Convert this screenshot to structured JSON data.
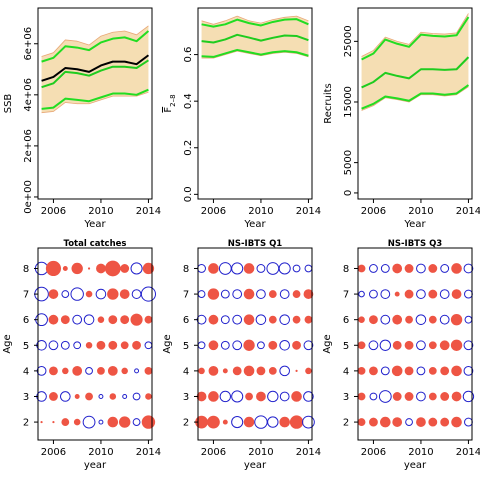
{
  "colors": {
    "band": "#f5deb3",
    "bandEdge": "#e8a878",
    "ci": "#22dd22",
    "ssbMain": "#000000",
    "estimate": "#1fcc1f",
    "positive": "#ee5544",
    "negative": "#2222cc"
  },
  "chart_data": [
    {
      "type": "line",
      "ylabel": "SSB",
      "xlabel": "Year",
      "xlim": [
        2004.7,
        2014.3
      ],
      "ylim": [
        -80000,
        7400000
      ],
      "yticks": [
        0,
        2000000,
        4000000,
        6000000
      ],
      "ytick_labels": [
        "0e+00",
        "2e+06",
        "4e+06",
        "6e+06"
      ],
      "x": [
        2005,
        2006,
        2007,
        2008,
        2009,
        2010,
        2011,
        2012,
        2013,
        2014
      ],
      "series": [
        {
          "role": "band_upper",
          "values": [
            5500000,
            5650000,
            6150000,
            6100000,
            5950000,
            6300000,
            6450000,
            6500000,
            6350000,
            6700000
          ]
        },
        {
          "role": "band_lower",
          "values": [
            3300000,
            3350000,
            3700000,
            3650000,
            3650000,
            3800000,
            3950000,
            3950000,
            3950000,
            4100000
          ]
        },
        {
          "role": "ci_upper",
          "values": [
            5300000,
            5450000,
            5900000,
            5850000,
            5750000,
            6050000,
            6200000,
            6250000,
            6100000,
            6500000
          ]
        },
        {
          "role": "ci_lower",
          "values": [
            3450000,
            3500000,
            3850000,
            3800000,
            3750000,
            3900000,
            4050000,
            4050000,
            4000000,
            4200000
          ]
        },
        {
          "role": "estimate",
          "values": [
            4300000,
            4450000,
            4900000,
            4850000,
            4750000,
            4950000,
            5100000,
            5100000,
            5050000,
            5350000
          ]
        },
        {
          "role": "ssb",
          "values": [
            4550000,
            4700000,
            5050000,
            5000000,
            4900000,
            5150000,
            5300000,
            5300000,
            5200000,
            5550000
          ]
        }
      ]
    },
    {
      "type": "line",
      "ylabel": "F",
      "ylabel_sub": "2–8",
      "xlabel": "Year",
      "xlim": [
        2004.7,
        2014.3
      ],
      "ylim": [
        -0.02,
        0.8
      ],
      "yticks": [
        0.0,
        0.2,
        0.4,
        0.6
      ],
      "ytick_labels": [
        "0.0",
        "0.2",
        "0.4",
        "0.6"
      ],
      "x": [
        2005,
        2006,
        2007,
        2008,
        2009,
        2010,
        2011,
        2012,
        2013,
        2014
      ],
      "series": [
        {
          "role": "band_upper",
          "values": [
            0.745,
            0.73,
            0.745,
            0.765,
            0.745,
            0.735,
            0.75,
            0.76,
            0.765,
            0.745
          ]
        },
        {
          "role": "band_lower",
          "values": [
            0.585,
            0.585,
            0.6,
            0.615,
            0.605,
            0.595,
            0.605,
            0.61,
            0.605,
            0.59
          ]
        },
        {
          "role": "ci_upper",
          "values": [
            0.73,
            0.72,
            0.73,
            0.75,
            0.735,
            0.725,
            0.74,
            0.75,
            0.752,
            0.73
          ]
        },
        {
          "role": "ci_lower",
          "values": [
            0.593,
            0.59,
            0.605,
            0.62,
            0.61,
            0.6,
            0.61,
            0.615,
            0.61,
            0.595
          ]
        },
        {
          "role": "estimate",
          "values": [
            0.658,
            0.652,
            0.665,
            0.685,
            0.673,
            0.66,
            0.672,
            0.682,
            0.68,
            0.662
          ]
        }
      ]
    },
    {
      "type": "line",
      "ylabel": "Recruits",
      "xlabel": "Year",
      "xlim": [
        2004.7,
        2014.3
      ],
      "ylim": [
        -1000,
        30500
      ],
      "yticks": [
        0,
        5000,
        15000,
        25000
      ],
      "ytick_labels": [
        "0",
        "5000",
        "15000",
        "25000"
      ],
      "x": [
        2005,
        2006,
        2007,
        2008,
        2009,
        2010,
        2011,
        2012,
        2013,
        2014
      ],
      "series": [
        {
          "role": "band_upper",
          "values": [
            22500,
            23500,
            25700,
            25000,
            24500,
            26500,
            26300,
            26200,
            26400,
            29600
          ]
        },
        {
          "role": "band_lower",
          "values": [
            13600,
            14400,
            15700,
            15400,
            15000,
            16200,
            16200,
            16000,
            16200,
            17500
          ]
        },
        {
          "role": "ci_upper",
          "values": [
            22000,
            23000,
            25300,
            24600,
            24100,
            26100,
            25900,
            25800,
            26000,
            29000
          ]
        },
        {
          "role": "ci_lower",
          "values": [
            13900,
            14700,
            15900,
            15600,
            15200,
            16400,
            16400,
            16200,
            16400,
            17800
          ]
        },
        {
          "role": "estimate",
          "values": [
            17400,
            18300,
            19800,
            19300,
            18900,
            20400,
            20400,
            20300,
            20400,
            22400
          ]
        }
      ]
    },
    {
      "type": "scatter",
      "title": "Total catches",
      "xlabel": "year",
      "ylabel": "Age",
      "xlim": [
        2004.7,
        2014.3
      ],
      "ylim": [
        1.3,
        8.8
      ],
      "ages": [
        2,
        3,
        4,
        5,
        6,
        7,
        8
      ],
      "years": [
        2005,
        2006,
        2007,
        2008,
        2009,
        2010,
        2011,
        2012,
        2013,
        2014
      ],
      "residuals": [
        [
          0.0,
          0.0,
          0.3,
          0.2,
          -0.9,
          -0.1,
          0.6,
          0.7,
          -0.3,
          1.0
        ],
        [
          -0.6,
          0.4,
          -0.6,
          0.1,
          0.3,
          -0.1,
          0.2,
          -0.1,
          -0.3,
          0.2
        ],
        [
          -0.5,
          0.4,
          0.2,
          0.5,
          -0.3,
          0.3,
          0.5,
          0.2,
          -0.1,
          0.3
        ],
        [
          -0.6,
          -0.5,
          -0.4,
          -0.3,
          0.2,
          0.4,
          0.4,
          0.3,
          0.4,
          -0.3
        ],
        [
          -0.9,
          0.5,
          0.4,
          -0.5,
          -0.6,
          0.2,
          0.4,
          0.4,
          0.8,
          0.3
        ],
        [
          -1.2,
          0.5,
          -0.3,
          -1.0,
          0.2,
          -0.6,
          0.7,
          0.5,
          -0.5,
          -1.3
        ],
        [
          -1.0,
          1.3,
          0.1,
          0.7,
          0.0,
          0.5,
          1.4,
          0.4,
          -0.8,
          0.7
        ]
      ]
    },
    {
      "type": "scatter",
      "title": "NS-IBTS Q1",
      "xlabel": "year",
      "ylabel": "Age",
      "xlim": [
        2004.7,
        2014.3
      ],
      "ylim": [
        1.3,
        8.8
      ],
      "ages": [
        2,
        3,
        4,
        5,
        6,
        7,
        8
      ],
      "years": [
        2005,
        2006,
        2007,
        2008,
        2009,
        2010,
        2011,
        2012,
        2013,
        2014
      ],
      "residuals": [
        [
          0.9,
          0.9,
          0.1,
          -0.8,
          0.6,
          -1.0,
          -0.7,
          0.6,
          1.0,
          -0.9
        ],
        [
          0.5,
          0.6,
          -0.7,
          -0.8,
          0.3,
          0.5,
          -0.7,
          -0.5,
          0.6,
          -0.6
        ],
        [
          0.2,
          0.5,
          0.1,
          0.4,
          0.6,
          0.4,
          0.3,
          -0.6,
          0.0,
          0.2
        ],
        [
          -0.3,
          0.5,
          -0.4,
          -0.5,
          0.7,
          -0.3,
          0.4,
          -0.6,
          0.4,
          -0.5
        ],
        [
          -0.5,
          0.5,
          -0.4,
          -0.5,
          0.6,
          -0.6,
          0.3,
          -0.6,
          0.3,
          0.3
        ],
        [
          -0.3,
          0.7,
          -0.4,
          -0.5,
          0.6,
          -0.5,
          0.3,
          -0.5,
          0.3,
          0.5
        ],
        [
          -0.4,
          0.6,
          -0.9,
          -0.8,
          0.6,
          -0.4,
          -0.9,
          -0.8,
          -0.3,
          -0.3
        ]
      ]
    },
    {
      "type": "scatter",
      "title": "NS-IBTS Q3",
      "xlabel": "year",
      "ylabel": "Age",
      "xlim": [
        2004.7,
        2014.3
      ],
      "ylim": [
        1.3,
        8.8
      ],
      "ages": [
        2,
        3,
        4,
        5,
        6,
        7,
        8
      ],
      "years": [
        2005,
        2006,
        2007,
        2008,
        2009,
        2010,
        2011,
        2012,
        2013,
        2014
      ],
      "residuals": [
        [
          0.3,
          0.4,
          0.6,
          0.5,
          -0.3,
          0.5,
          0.4,
          0.4,
          0.6,
          -0.4
        ],
        [
          0.3,
          -0.3,
          -0.9,
          0.4,
          0.4,
          -0.5,
          0.3,
          0.4,
          0.5,
          -0.7
        ],
        [
          0.3,
          0.4,
          -0.4,
          0.6,
          0.4,
          -0.4,
          0.3,
          0.4,
          0.6,
          -0.5
        ],
        [
          0.3,
          -0.5,
          -0.7,
          0.4,
          0.4,
          -0.5,
          0.3,
          0.5,
          0.7,
          -0.5
        ],
        [
          0.2,
          0.4,
          -0.5,
          0.5,
          0.3,
          -0.6,
          0.3,
          -0.5,
          0.7,
          -0.3
        ],
        [
          -0.2,
          -0.4,
          -0.5,
          0.1,
          0.4,
          -0.5,
          0.4,
          -0.5,
          0.5,
          -0.4
        ],
        [
          0.3,
          -0.4,
          -0.4,
          0.5,
          0.4,
          -0.5,
          0.4,
          -0.4,
          0.6,
          -0.5
        ]
      ]
    }
  ]
}
